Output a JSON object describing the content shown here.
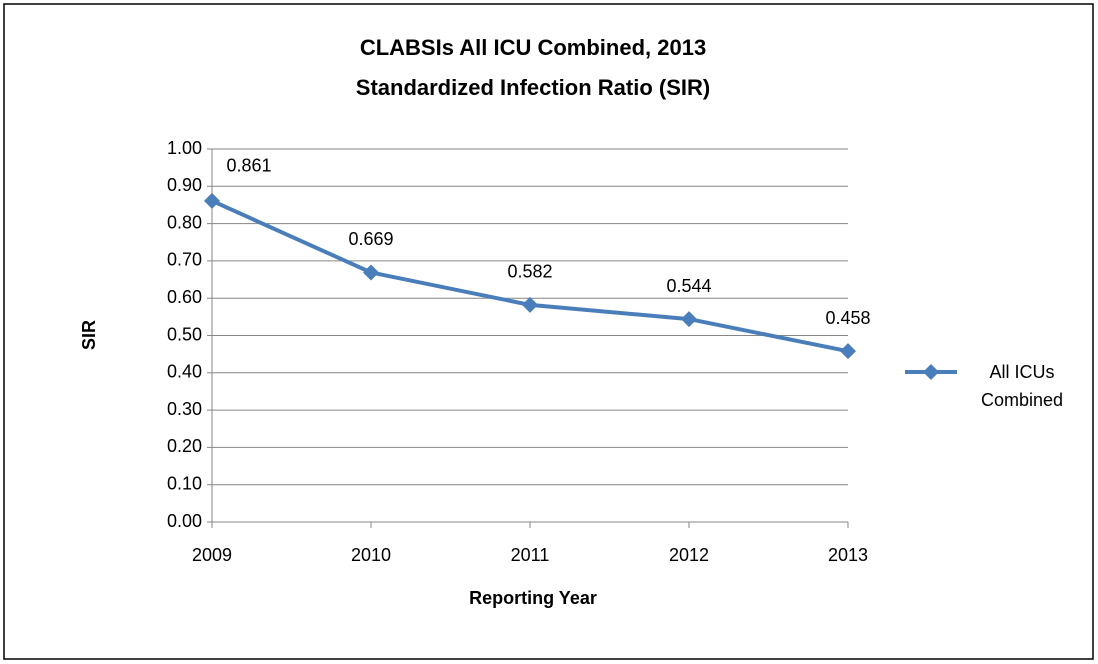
{
  "chart_data": {
    "type": "line",
    "title": [
      "CLABSIs All ICU Combined, 2013",
      "Standardized Infection Ratio (SIR)"
    ],
    "x_label": "Reporting Year",
    "y_label": "SIR",
    "categories": [
      "2009",
      "2010",
      "2011",
      "2012",
      "2013"
    ],
    "series": [
      {
        "name": "All ICUs Combined",
        "color": "#4a7ebb",
        "values": [
          0.861,
          0.669,
          0.582,
          0.544,
          0.458
        ]
      }
    ],
    "ylim": [
      0,
      1
    ],
    "yticks": [
      {
        "value": 0,
        "label": "0.00"
      },
      {
        "value": 0.1,
        "label": "0.10"
      },
      {
        "value": 0.2,
        "label": "0.20"
      },
      {
        "value": 0.3,
        "label": "0.30"
      },
      {
        "value": 0.4,
        "label": "0.40"
      },
      {
        "value": 0.5,
        "label": "0.50"
      },
      {
        "value": 0.6,
        "label": "0.60"
      },
      {
        "value": 0.7,
        "label": "0.70"
      },
      {
        "value": 0.8,
        "label": "0.80"
      },
      {
        "value": 0.9,
        "label": "0.90"
      },
      {
        "value": 1,
        "label": "1.00"
      }
    ],
    "grid": true,
    "legend": "right"
  }
}
